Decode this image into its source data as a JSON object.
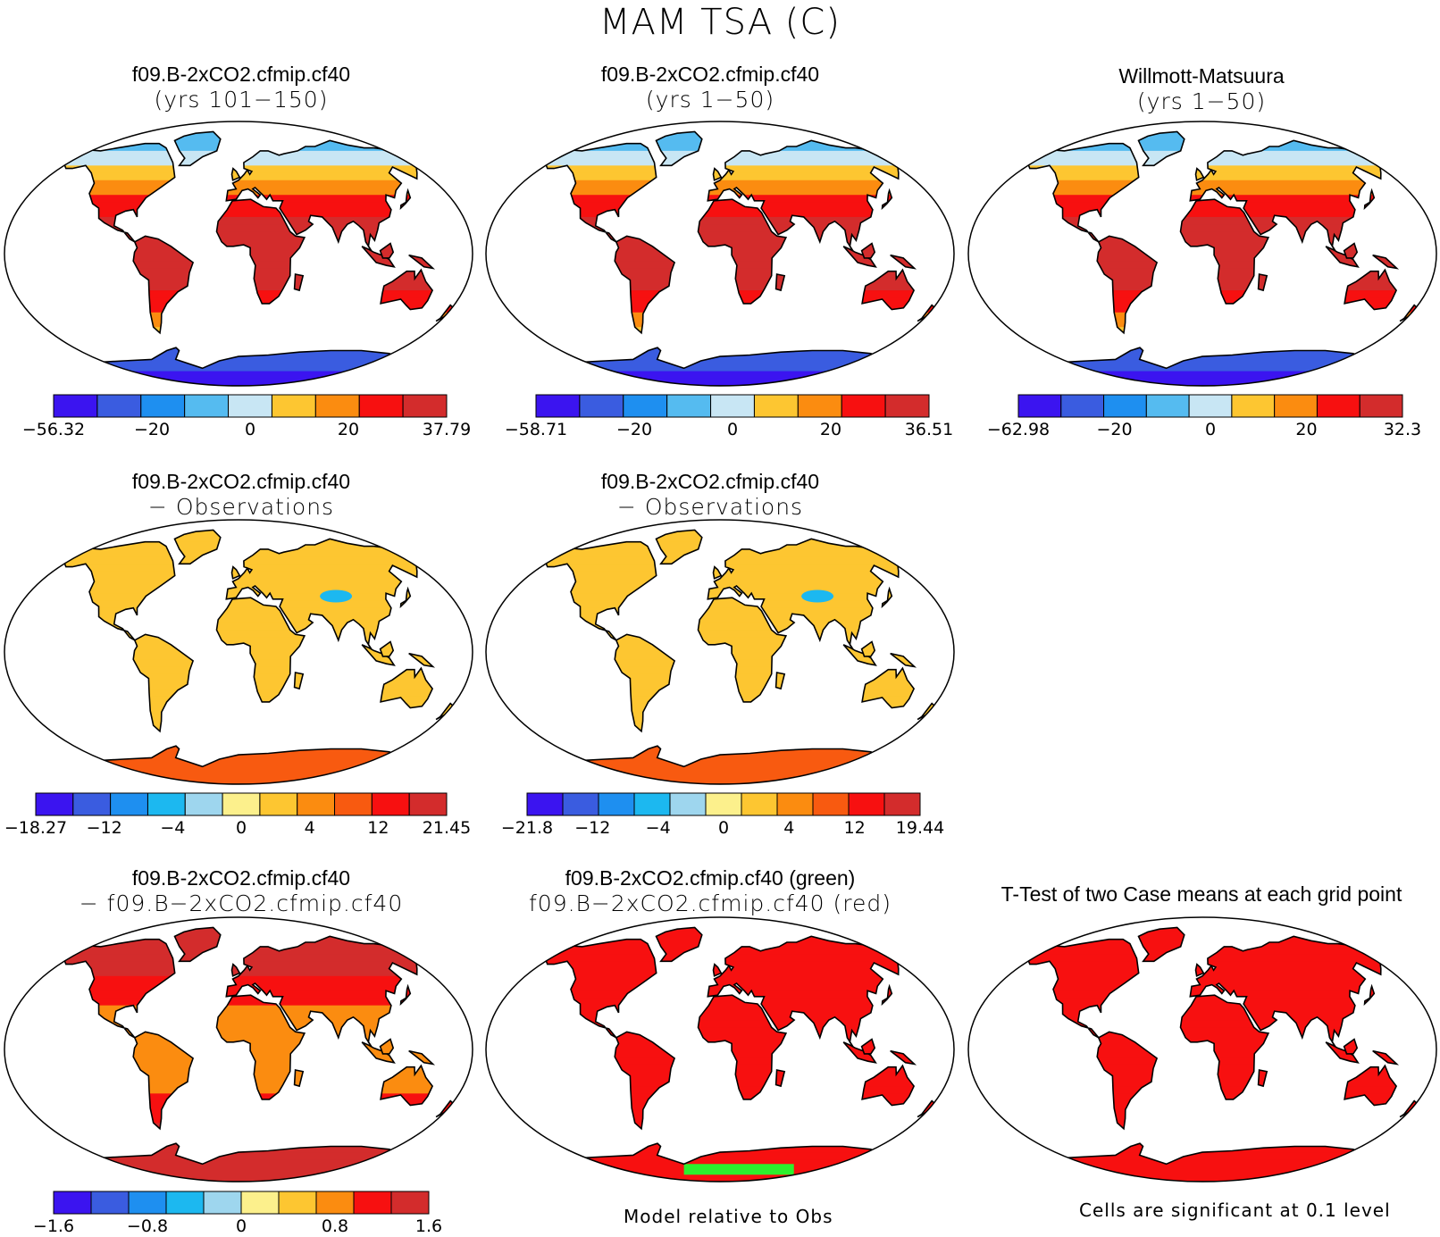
{
  "title": "MAM TSA (C)",
  "colors": {
    "abs": [
      "#3b14f0",
      "#3a5ce0",
      "#1e8ff0",
      "#55bbf0",
      "#c8e6f4",
      "#fdc631",
      "#fb8c10",
      "#f71010",
      "#d32c2c"
    ],
    "diff": [
      "#3b14f0",
      "#3a5ce0",
      "#1e8ff0",
      "#1cb8f0",
      "#9ed6ee",
      "#fcf08c",
      "#fdc631",
      "#fb8c10",
      "#f85a10",
      "#f71010",
      "#d32c2c"
    ],
    "dd": [
      "#3b14f0",
      "#3a5ce0",
      "#1e8ff0",
      "#1cb8f0",
      "#9ed6ee",
      "#fcf08c",
      "#fdc631",
      "#fb8c10",
      "#f71010",
      "#d32c2c"
    ],
    "green": "#2df02d",
    "sig": "#f71010"
  },
  "panels": [
    {
      "id": "p1",
      "line1": "f09.B-2xCO2.cfmip.cf40",
      "line2": "(yrs 101−150)",
      "scheme": "abs",
      "pattern": "abs",
      "colorbar": {
        "labels": [
          "−56.32",
          "−20",
          "0",
          "20",
          "37.79"
        ]
      }
    },
    {
      "id": "p2",
      "line1": "f09.B-2xCO2.cfmip.cf40",
      "line2": "(yrs 1−50)",
      "scheme": "abs",
      "pattern": "abs",
      "colorbar": {
        "labels": [
          "−58.71",
          "−20",
          "0",
          "20",
          "36.51"
        ]
      }
    },
    {
      "id": "p3",
      "line1": "Willmott-Matsuura",
      "line2": "(yrs 1−50)",
      "scheme": "abs",
      "pattern": "abs",
      "colorbar": {
        "labels": [
          "−62.98",
          "−20",
          "0",
          "20",
          "32.3"
        ]
      }
    },
    {
      "id": "p4",
      "line1": "f09.B-2xCO2.cfmip.cf40",
      "line2": "− Observations",
      "scheme": "diff",
      "pattern": "diff",
      "colorbar": {
        "labels": [
          "−18.27",
          "−12",
          "−4",
          "0",
          "4",
          "12",
          "21.45"
        ]
      }
    },
    {
      "id": "p5",
      "line1": "f09.B-2xCO2.cfmip.cf40",
      "line2": "− Observations",
      "scheme": "diff",
      "pattern": "diff",
      "colorbar": {
        "labels": [
          "−21.8",
          "−12",
          "−4",
          "0",
          "4",
          "12",
          "19.44"
        ]
      }
    },
    {
      "id": "p6",
      "line1": "f09.B-2xCO2.cfmip.cf40",
      "line2": "− f09.B−2xCO2.cfmip.cf40",
      "scheme": "dd",
      "pattern": "dd",
      "colorbar": {
        "labels": [
          "−1.6",
          "−0.8",
          "0",
          "0.8",
          "1.6"
        ]
      }
    },
    {
      "id": "p7",
      "line1": "f09.B-2xCO2.cfmip.cf40 (green)",
      "line2": "f09.B−2xCO2.cfmip.cf40 (red)",
      "pattern": "rg"
    },
    {
      "id": "p8",
      "line1": "T-Test of two Case means at each grid point",
      "line2": "",
      "pattern": "sig"
    }
  ],
  "notes": {
    "model_relative": "Model relative to Obs",
    "significance": "Cells are significant at 0.1 level"
  }
}
